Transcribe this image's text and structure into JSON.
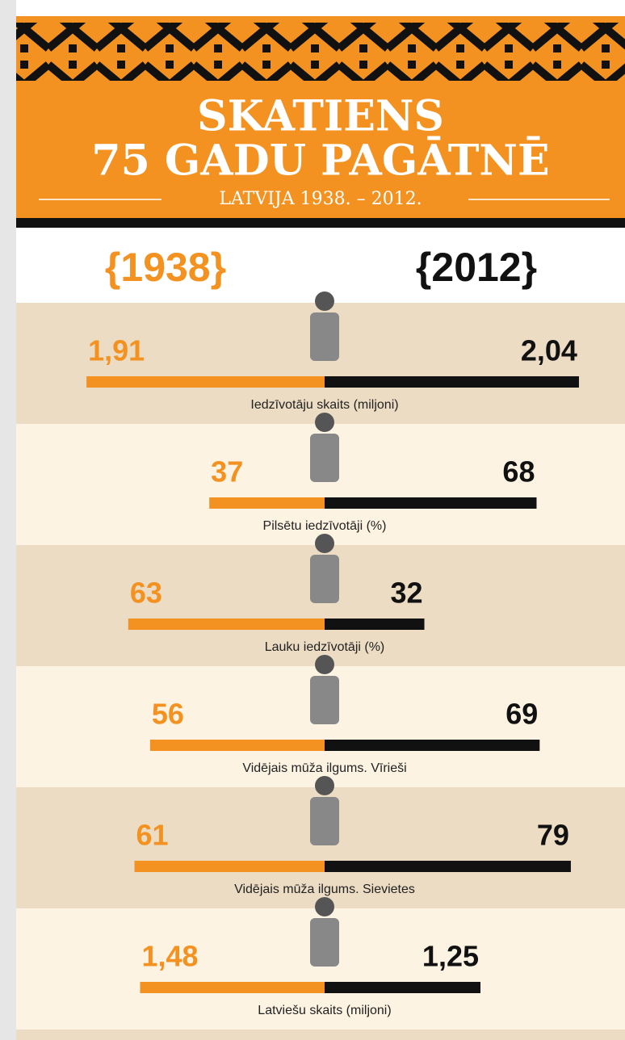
{
  "header": {
    "title_line1": "SKATIENS",
    "title_line2": "75 GADU PAGĀTNĒ",
    "subtitle": "LATVIJA 1938. – 2012."
  },
  "years": [
    "{1938}",
    "{2012}"
  ],
  "colors": [
    "#f39220",
    "#111111"
  ],
  "rows": [
    {
      "label": "Iedzīvotāju skaits (miljoni)",
      "values": [
        1.91,
        2.04
      ],
      "value_labels": [
        "1,91",
        "2,04"
      ],
      "xlim": [
        0,
        2.5
      ]
    },
    {
      "label": "Pilsētu iedzīvotāji (%)",
      "values": [
        37,
        68
      ],
      "xlim": [
        0,
        100
      ]
    },
    {
      "label": "Lauku iedzīvotāji (%)",
      "values": [
        63,
        32
      ],
      "xlim": [
        0,
        100
      ]
    },
    {
      "label": "Vidējais mūža ilgums. Vīrieši",
      "values": [
        56,
        69
      ],
      "xlim": [
        0,
        100
      ]
    },
    {
      "label": "Vidējais mūža ilgums. Sievietes",
      "values": [
        61,
        79
      ],
      "xlim": [
        0,
        100
      ]
    },
    {
      "label": "Latviešu skaits (miljoni)",
      "values": [
        1.48,
        1.25
      ],
      "value_labels": [
        "1,48",
        "1,25"
      ],
      "xlim": [
        0,
        2.5
      ]
    }
  ]
}
